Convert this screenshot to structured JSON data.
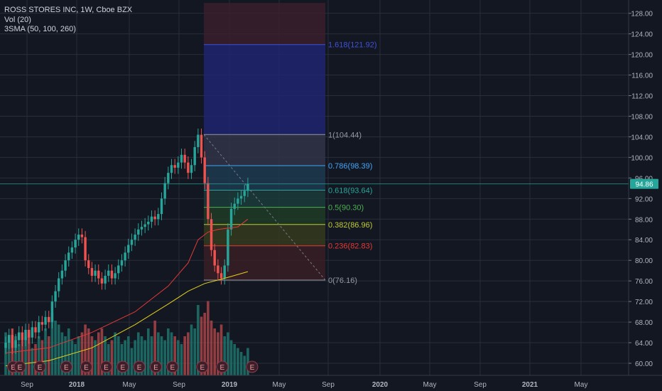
{
  "header": {
    "symbol_line": "ROSS STORES INC, 1W, Cboe BZX",
    "indicator_vol": "Vol (20)",
    "indicator_sma": "3SMA (50, 100, 260)"
  },
  "colors": {
    "background": "#131722",
    "grid": "#2a2e39",
    "candle_up": "#26a69a",
    "candle_down": "#ef5350",
    "vol_up": "#1f7a72",
    "vol_down": "#b2474a",
    "sma_100": "#e53935",
    "sma_260": "#e3d11a",
    "price_label": "#26a69a"
  },
  "chart_data": {
    "type": "candlestick",
    "title": "ROSS STORES INC, 1W, Cboe BZX",
    "ylim": [
      58,
      130
    ],
    "y_ticks": [
      "60.00",
      "64.00",
      "68.00",
      "72.00",
      "76.00",
      "80.00",
      "84.00",
      "88.00",
      "92.00",
      "96.00",
      "100.00",
      "104.00",
      "108.00",
      "112.00",
      "116.00",
      "120.00",
      "124.00",
      "128.00"
    ],
    "x_labels": [
      "Sep",
      "2018",
      "May",
      "Sep",
      "2019",
      "May",
      "Sep",
      "2020",
      "May",
      "Sep",
      "2021",
      "May"
    ],
    "last_price": "94.86",
    "grid": true,
    "closes": [
      64.0,
      65.5,
      63.0,
      64.5,
      66.0,
      64.5,
      66.5,
      65.0,
      67.0,
      66.0,
      68.0,
      67.5,
      69.0,
      68.0,
      72.0,
      74.0,
      76.5,
      78.0,
      80.0,
      81.5,
      82.5,
      84.0,
      85.0,
      84.5,
      80.0,
      78.5,
      77.0,
      78.0,
      76.5,
      75.5,
      77.0,
      78.0,
      76.5,
      77.5,
      79.0,
      80.0,
      81.5,
      83.0,
      84.0,
      85.0,
      86.0,
      86.5,
      87.0,
      87.5,
      88.5,
      88.0,
      89.0,
      92.0,
      95.0,
      97.0,
      98.5,
      98.0,
      99.0,
      100.5,
      99.0,
      97.0,
      98.5,
      102.0,
      104.4,
      100.0,
      95.0,
      88.0,
      82.0,
      79.0,
      77.5,
      76.5,
      79.0,
      86.0,
      90.0,
      91.0,
      92.0,
      92.5,
      93.5,
      94.86
    ],
    "volumes": [
      0.55,
      0.45,
      0.6,
      0.5,
      0.4,
      0.45,
      0.5,
      0.55,
      0.35,
      0.4,
      0.5,
      0.45,
      0.6,
      0.5,
      0.8,
      0.7,
      0.65,
      0.55,
      0.5,
      0.6,
      0.45,
      0.4,
      0.5,
      0.55,
      0.65,
      0.6,
      0.5,
      0.45,
      0.55,
      0.6,
      0.5,
      0.4,
      0.45,
      0.55,
      0.5,
      0.4,
      0.45,
      0.5,
      0.35,
      0.45,
      0.55,
      0.5,
      0.45,
      0.6,
      0.5,
      0.7,
      0.55,
      0.5,
      0.45,
      0.6,
      0.55,
      0.5,
      0.45,
      0.4,
      0.5,
      0.55,
      0.65,
      0.6,
      0.9,
      0.75,
      0.8,
      0.95,
      0.7,
      0.6,
      0.55,
      0.65,
      0.5,
      0.55,
      0.45,
      0.4,
      0.35,
      0.3,
      0.25,
      0.35
    ],
    "sma_100": [
      [
        0,
        62.0
      ],
      [
        13,
        63.0
      ],
      [
        26,
        66.0
      ],
      [
        39,
        70.0
      ],
      [
        49,
        75.0
      ],
      [
        55,
        79.5
      ],
      [
        58,
        84.0
      ],
      [
        61,
        85.5
      ],
      [
        64,
        86.0
      ],
      [
        70,
        86.5
      ],
      [
        73,
        88.0
      ]
    ],
    "sma_260": [
      [
        0,
        59.5
      ],
      [
        13,
        60.5
      ],
      [
        26,
        63.0
      ],
      [
        39,
        67.5
      ],
      [
        49,
        71.5
      ],
      [
        55,
        74.0
      ],
      [
        60,
        75.5
      ],
      [
        66,
        76.5
      ],
      [
        73,
        77.8
      ]
    ],
    "fib_levels": [
      {
        "label": "1.618(121.92)",
        "value": 121.92,
        "color": "#3f51d8"
      },
      {
        "label": "1(104.44)",
        "value": 104.44,
        "color": "#9598a1"
      },
      {
        "label": "0.786(98.39)",
        "value": 98.39,
        "color": "#42a5f5"
      },
      {
        "label": "0.618(93.64)",
        "value": 93.64,
        "color": "#26a69a"
      },
      {
        "label": "0.5(90.30)",
        "value": 90.3,
        "color": "#4caf50"
      },
      {
        "label": "0.382(86.96)",
        "value": 86.96,
        "color": "#c0ca33"
      },
      {
        "label": "0.236(82.83)",
        "value": 82.83,
        "color": "#e53935"
      },
      {
        "label": "0(76.16)",
        "value": 76.16,
        "color": "#9598a1"
      }
    ],
    "fib_extra_top": 130,
    "earnings_marker": "E",
    "earnings_bars": [
      1,
      3,
      9,
      17,
      23,
      29,
      34,
      39,
      44,
      49,
      58,
      64,
      73
    ]
  }
}
